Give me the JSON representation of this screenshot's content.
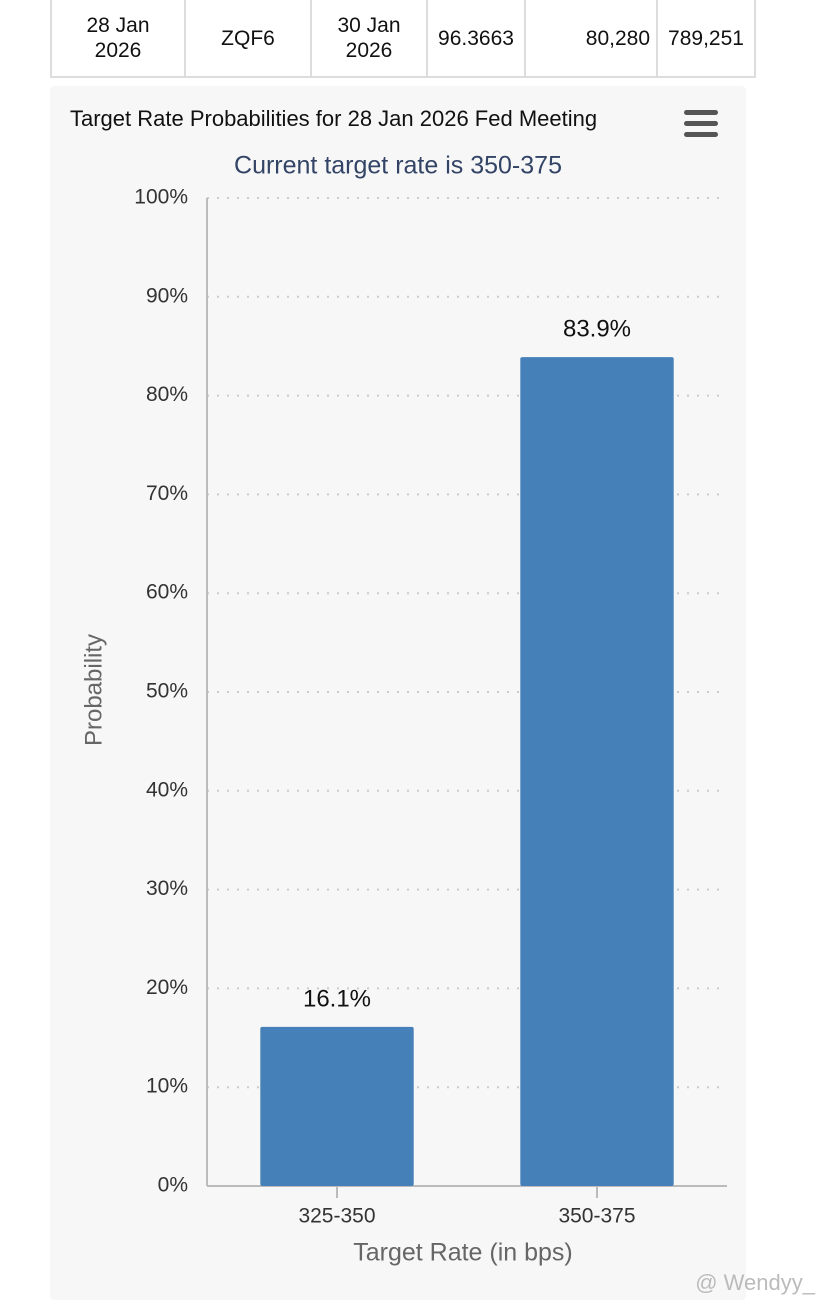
{
  "table": {
    "rows": [
      [
        "28 Jan\n2026",
        "ZQF6",
        "30 Jan\n2026",
        "96.3663",
        "80,280",
        "789,251"
      ]
    ]
  },
  "chart_data": {
    "type": "bar",
    "title": "Target Rate Probabilities for 28 Jan 2026 Fed Meeting",
    "subtitle": "Current target rate is 350-375",
    "x_label": "Target Rate (in bps)",
    "y_label": "Probability",
    "categories": [
      "325-350",
      "350-375"
    ],
    "values": [
      16.1,
      83.9
    ],
    "value_labels": [
      "16.1%",
      "83.9%"
    ],
    "color": "#4580b8",
    "ylim": [
      0,
      100
    ],
    "yticks": [
      {
        "value": 0,
        "label": "0%"
      },
      {
        "value": 10,
        "label": "10%"
      },
      {
        "value": 20,
        "label": "20%"
      },
      {
        "value": 30,
        "label": "30%"
      },
      {
        "value": 40,
        "label": "40%"
      },
      {
        "value": 50,
        "label": "50%"
      },
      {
        "value": 60,
        "label": "60%"
      },
      {
        "value": 70,
        "label": "70%"
      },
      {
        "value": 80,
        "label": "80%"
      },
      {
        "value": 90,
        "label": "90%"
      },
      {
        "value": 100,
        "label": "100%"
      }
    ],
    "grid": true
  },
  "watermark": "@ Wendyy_"
}
